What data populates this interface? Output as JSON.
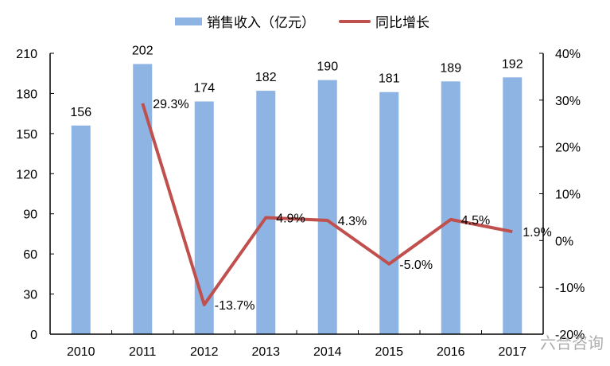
{
  "legend": {
    "bar_label": "销售收入（亿元）",
    "line_label": "同比增长"
  },
  "colors": {
    "bar": "#8EB4E3",
    "line": "#C0504D",
    "axis": "#000000"
  },
  "watermark": "六合咨询",
  "chart_data": {
    "type": "bar",
    "title": "",
    "categories": [
      "2010",
      "2011",
      "2012",
      "2013",
      "2014",
      "2015",
      "2016",
      "2017"
    ],
    "series": [
      {
        "name": "销售收入（亿元）",
        "type": "bar",
        "axis": "left",
        "values": [
          156,
          202,
          174,
          182,
          190,
          181,
          189,
          192
        ],
        "labels": [
          "156",
          "202",
          "174",
          "182",
          "190",
          "181",
          "189",
          "192"
        ]
      },
      {
        "name": "同比增长",
        "type": "line",
        "axis": "right",
        "values": [
          null,
          29.3,
          -13.7,
          4.9,
          4.3,
          -5.0,
          4.5,
          1.9
        ],
        "labels": [
          "",
          "29.3%",
          "-13.7%",
          "4.9%",
          "4.3%",
          "-5.0%",
          "4.5%",
          "1.9%"
        ]
      }
    ],
    "left_axis": {
      "min": 0,
      "max": 210,
      "step": 30,
      "ticks": [
        "0",
        "30",
        "60",
        "90",
        "120",
        "150",
        "180",
        "210"
      ]
    },
    "right_axis": {
      "min": -20,
      "max": 40,
      "step": 10,
      "ticks": [
        "-20%",
        "-10%",
        "0%",
        "10%",
        "20%",
        "30%",
        "40%"
      ]
    },
    "xlabel": "",
    "ylabel": "",
    "ylabel_right": "",
    "grid": false,
    "legend_position": "top"
  }
}
